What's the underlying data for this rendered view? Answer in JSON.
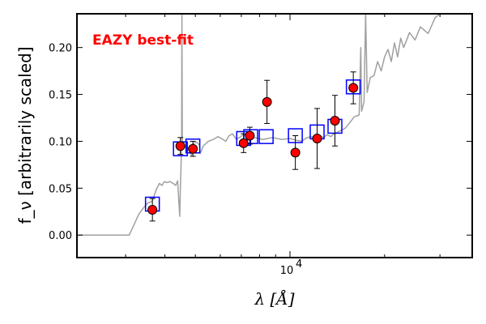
{
  "chart_data": {
    "type": "scatter",
    "annotation": "EAZY best-fit",
    "xlabel": "λ [Å]",
    "ylabel": "f_ν [arbitrarily scaled]",
    "x_scale": "log",
    "xlim": [
      2100,
      38000
    ],
    "ylim": [
      -0.024,
      0.236
    ],
    "x_ticks": [
      {
        "value": 10000,
        "base": "10",
        "exp": "4"
      }
    ],
    "y_ticks": [
      {
        "value": 0.0,
        "label": "0.00"
      },
      {
        "value": 0.05,
        "label": "0.05"
      },
      {
        "value": 0.1,
        "label": "0.10"
      },
      {
        "value": 0.15,
        "label": "0.15"
      },
      {
        "value": 0.2,
        "label": "0.20"
      }
    ],
    "colors": {
      "sed_line": "#a0a0a0",
      "model_box": "#0000ff",
      "point_fill": "#ff0000",
      "point_edge": "#000000",
      "annotation": "#ff0000"
    },
    "sed_template": [
      [
        2100,
        0.0
      ],
      [
        3080,
        0.0
      ],
      [
        3200,
        0.012
      ],
      [
        3300,
        0.022
      ],
      [
        3400,
        0.028
      ],
      [
        3520,
        0.034
      ],
      [
        3640,
        0.036
      ],
      [
        3760,
        0.049
      ],
      [
        3840,
        0.055
      ],
      [
        3920,
        0.053
      ],
      [
        3980,
        0.057
      ],
      [
        4060,
        0.056
      ],
      [
        4150,
        0.057
      ],
      [
        4250,
        0.055
      ],
      [
        4330,
        0.053
      ],
      [
        4390,
        0.058
      ],
      [
        4460,
        0.02
      ],
      [
        4480,
        0.05
      ],
      [
        4520,
        0.095
      ],
      [
        4530,
        0.235
      ],
      [
        4545,
        0.093
      ],
      [
        4650,
        0.094
      ],
      [
        4800,
        0.09
      ],
      [
        4861,
        0.085
      ],
      [
        4920,
        0.098
      ],
      [
        5050,
        0.099
      ],
      [
        5150,
        0.096
      ],
      [
        5180,
        0.087
      ],
      [
        5300,
        0.095
      ],
      [
        5500,
        0.1
      ],
      [
        5700,
        0.102
      ],
      [
        5900,
        0.105
      ],
      [
        6050,
        0.103
      ],
      [
        6250,
        0.1
      ],
      [
        6400,
        0.106
      ],
      [
        6560,
        0.108
      ],
      [
        6750,
        0.102
      ],
      [
        6900,
        0.104
      ],
      [
        7100,
        0.107
      ],
      [
        7300,
        0.105
      ],
      [
        7500,
        0.104
      ],
      [
        7700,
        0.104
      ],
      [
        8200,
        0.102
      ],
      [
        8800,
        0.104
      ],
      [
        9400,
        0.102
      ],
      [
        10000,
        0.103
      ],
      [
        10500,
        0.101
      ],
      [
        10900,
        0.1
      ],
      [
        11200,
        0.103
      ],
      [
        11600,
        0.105
      ],
      [
        12000,
        0.104
      ],
      [
        12400,
        0.106
      ],
      [
        12800,
        0.104
      ],
      [
        13100,
        0.107
      ],
      [
        13500,
        0.105
      ],
      [
        13800,
        0.108
      ],
      [
        14200,
        0.11
      ],
      [
        14600,
        0.112
      ],
      [
        15000,
        0.114
      ],
      [
        15500,
        0.12
      ],
      [
        16000,
        0.126
      ],
      [
        16600,
        0.128
      ],
      [
        16800,
        0.2
      ],
      [
        16900,
        0.132
      ],
      [
        17200,
        0.142
      ],
      [
        17400,
        0.236
      ],
      [
        17600,
        0.152
      ],
      [
        18000,
        0.168
      ],
      [
        18500,
        0.17
      ],
      [
        19000,
        0.185
      ],
      [
        19500,
        0.175
      ],
      [
        20000,
        0.19
      ],
      [
        20500,
        0.198
      ],
      [
        21000,
        0.185
      ],
      [
        21500,
        0.205
      ],
      [
        22000,
        0.19
      ],
      [
        22500,
        0.21
      ],
      [
        23000,
        0.2
      ],
      [
        24000,
        0.216
      ],
      [
        25000,
        0.208
      ],
      [
        26000,
        0.222
      ],
      [
        27500,
        0.215
      ],
      [
        29000,
        0.232
      ],
      [
        30000,
        0.236
      ],
      [
        33000,
        0.236
      ]
    ],
    "model_fluxes": [
      {
        "x": 3650,
        "y": 0.033
      },
      {
        "x": 4480,
        "y": 0.092
      },
      {
        "x": 4910,
        "y": 0.095
      },
      {
        "x": 7120,
        "y": 0.103
      },
      {
        "x": 7500,
        "y": 0.105
      },
      {
        "x": 8400,
        "y": 0.105
      },
      {
        "x": 10400,
        "y": 0.106
      },
      {
        "x": 12200,
        "y": 0.11
      },
      {
        "x": 13900,
        "y": 0.116
      },
      {
        "x": 15900,
        "y": 0.158
      }
    ],
    "observed_fluxes": [
      {
        "x": 3650,
        "y": 0.027,
        "yerr": 0.012
      },
      {
        "x": 4480,
        "y": 0.095,
        "yerr": 0.009
      },
      {
        "x": 4910,
        "y": 0.092,
        "yerr": 0.008
      },
      {
        "x": 7120,
        "y": 0.098,
        "yerr": 0.01
      },
      {
        "x": 7450,
        "y": 0.106,
        "yerr": 0.009
      },
      {
        "x": 8450,
        "y": 0.142,
        "yerr": 0.023
      },
      {
        "x": 10400,
        "y": 0.088,
        "yerr": 0.018
      },
      {
        "x": 12200,
        "y": 0.103,
        "yerr": 0.032
      },
      {
        "x": 13900,
        "y": 0.122,
        "yerr": 0.027
      },
      {
        "x": 15900,
        "y": 0.157,
        "yerr": 0.017
      }
    ]
  }
}
